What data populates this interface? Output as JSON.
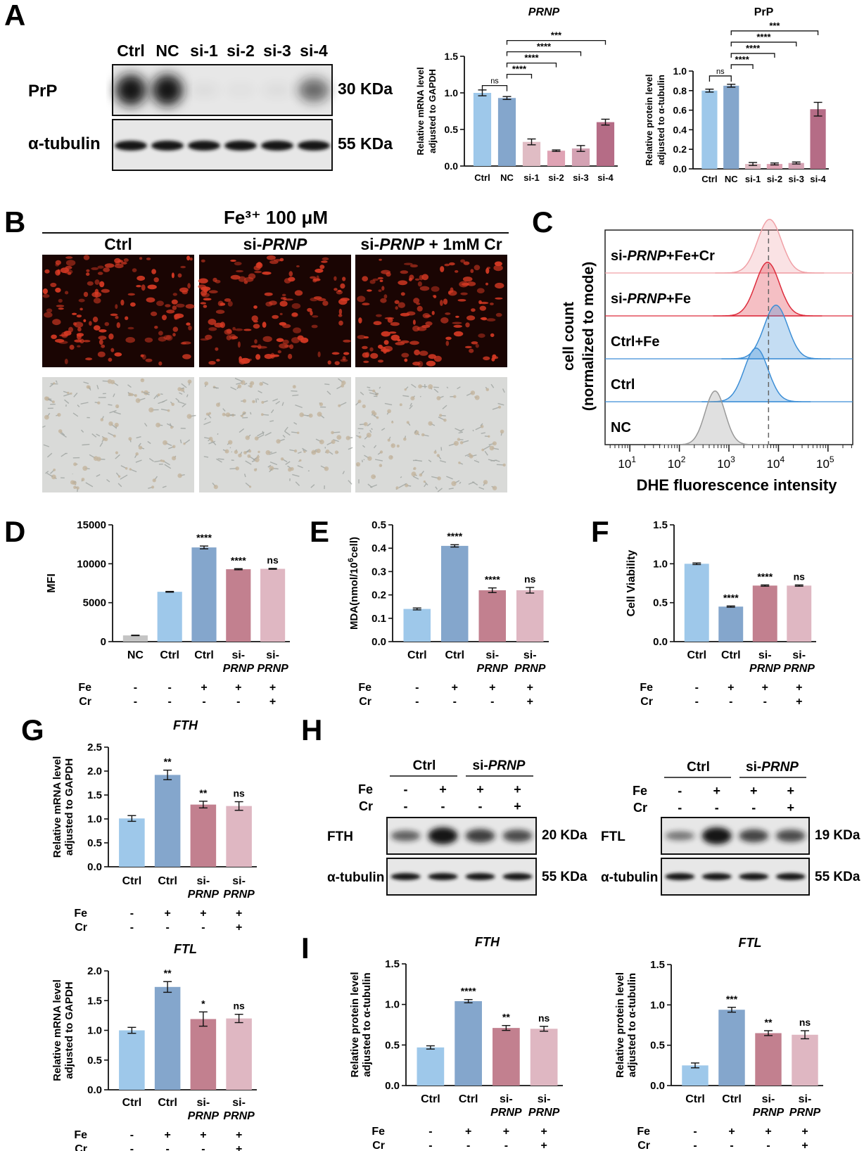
{
  "panels": {
    "A": "A",
    "B": "B",
    "C": "C",
    "D": "D",
    "E": "E",
    "F": "F",
    "G": "G",
    "H": "H",
    "I": "I"
  },
  "colors": {
    "ctrl": "#9ec8ea",
    "nc": "#84a6cc",
    "sigrey": "#c4c4c4",
    "si1": "#e0bcc4",
    "si2": "#dfa3b4",
    "si3": "#d4a2b3",
    "si4": "#b56c86",
    "rose": "#c2808f",
    "pale": "#dfb7c2",
    "blot_bg": "#e7e7e7",
    "band": "#141414",
    "fluor_bg": "#1a0503",
    "fluor_cell": "#d93a24",
    "bright_bg": "#d9dad8"
  },
  "blotA": {
    "lanes": [
      "Ctrl",
      "NC",
      "si-1",
      "si-2",
      "si-3",
      "si-4"
    ],
    "rows": [
      {
        "label": "PrP",
        "kda": "30 KDa"
      },
      {
        "label": "α-tubulin",
        "kda": "55 KDa"
      }
    ],
    "prp_intensity": [
      1.0,
      1.0,
      0.05,
      0.03,
      0.05,
      0.6
    ]
  },
  "panelB": {
    "treatment": "Fe³⁺ 100 μM",
    "groups": [
      {
        "pre": "",
        "ital": "",
        "post": "Ctrl"
      },
      {
        "pre": "si-",
        "ital": "PRNP",
        "post": ""
      },
      {
        "pre": "si-",
        "ital": "PRNP",
        "post": " + 1mM Cr"
      }
    ]
  },
  "panelC": {
    "ylabel1": "cell count",
    "ylabel2": "(normalized to mode)",
    "xlabel": "DHE fluorescence intensity",
    "tracks": [
      {
        "pre": "si-",
        "ital": "PRNP",
        "post": "+Fe+Cr",
        "peak": 3.82,
        "color": "#f0a0a6"
      },
      {
        "pre": "si-",
        "ital": "PRNP",
        "post": "+Fe",
        "peak": 3.78,
        "color": "#dd2c3c"
      },
      {
        "pre": "",
        "ital": "",
        "post": "Ctrl+Fe",
        "peak": 3.95,
        "color": "#3c8ed6"
      },
      {
        "pre": "",
        "ital": "",
        "post": "Ctrl",
        "peak": 3.55,
        "color": "#3c8ed6"
      },
      {
        "pre": "",
        "ital": "",
        "post": "NC",
        "peak": 2.72,
        "color": "#999999"
      }
    ],
    "ticks": [
      "10",
      "1",
      "10",
      "2",
      "10",
      "3",
      "10",
      "4",
      "10",
      "5"
    ]
  },
  "labels": {
    "nc": "NC",
    "ctrl": "Ctrl",
    "si": "si-",
    "prnp": "PRNP",
    "fe": "Fe",
    "cr": "Cr",
    "plus": "+",
    "minus": "-",
    "si1": "si-1",
    "si2": "si-2",
    "si3": "si-3",
    "si4": "si-4",
    "fth": "FTH",
    "ftl": "FTL",
    "mfi": "MFI",
    "mda": "MDA(nmol/10",
    "mda_sup": "6",
    "mda_end": "cell)",
    "viab": "Cell Viability",
    "mrna1": "Relative mRNA level",
    "mrna2": "adjusted to GAPDH",
    "prot1": "Relative protein level",
    "prot2": "adjusted to α-tubulin",
    "tub": "α-tubulin",
    "kda20": "20 KDa",
    "kda19": "19 KDa",
    "kda55": "55 KDa"
  },
  "chart_data": [
    {
      "id": "A-mRNA",
      "type": "bar",
      "title": "PRNP",
      "ylabel": "Relative mRNA level adjusted to GAPDH",
      "categories": [
        "Ctrl",
        "NC",
        "si-1",
        "si-2",
        "si-3",
        "si-4"
      ],
      "values": [
        1.0,
        0.93,
        0.33,
        0.21,
        0.24,
        0.6
      ],
      "errors": [
        0.04,
        0.02,
        0.04,
        0.01,
        0.04,
        0.04
      ],
      "ylim": [
        0,
        1.5
      ],
      "yticks": [
        "0.0",
        "0.5",
        "1.0",
        "1.5"
      ],
      "significance": [
        "ns",
        "****",
        "****",
        "****",
        "***"
      ]
    },
    {
      "id": "A-protein",
      "type": "bar",
      "title": "PrP",
      "ylabel": "Relative protein level adjusted to α-tubulin",
      "categories": [
        "Ctrl",
        "NC",
        "si-1",
        "si-2",
        "si-3",
        "si-4"
      ],
      "values": [
        0.8,
        0.85,
        0.05,
        0.05,
        0.06,
        0.61
      ],
      "errors": [
        0.015,
        0.015,
        0.015,
        0.01,
        0.01,
        0.07
      ],
      "ylim": [
        0,
        1.0
      ],
      "yticks": [
        "0.0",
        "0.2",
        "0.4",
        "0.6",
        "0.8",
        "1.0"
      ],
      "significance": [
        "ns",
        "****",
        "****",
        "****",
        "***"
      ]
    },
    {
      "id": "D",
      "type": "bar",
      "ylabel": "MFI",
      "categories": [
        "NC",
        "Ctrl",
        "Ctrl",
        "si-PRNP",
        "si-PRNP"
      ],
      "values": [
        800,
        6400,
        12100,
        9300,
        9350
      ],
      "errors": [
        30,
        50,
        180,
        70,
        50
      ],
      "ylim": [
        0,
        15000
      ],
      "yticks": [
        "0",
        "5000",
        "10000",
        "15000"
      ],
      "labels": [
        "",
        "",
        "****",
        "****",
        "ns"
      ],
      "fe": [
        "-",
        "-",
        "+",
        "+",
        "+"
      ],
      "cr": [
        "-",
        "-",
        "-",
        "-",
        "+"
      ]
    },
    {
      "id": "E",
      "type": "bar",
      "ylabel": "MDA(nmol/10^6cell)",
      "categories": [
        "Ctrl",
        "Ctrl",
        "si-PRNP",
        "si-PRNP"
      ],
      "values": [
        0.14,
        0.41,
        0.22,
        0.22
      ],
      "errors": [
        0.004,
        0.005,
        0.01,
        0.012
      ],
      "ylim": [
        0,
        0.5
      ],
      "yticks": [
        "0.0",
        "0.1",
        "0.2",
        "0.3",
        "0.4",
        "0.5"
      ],
      "labels": [
        "",
        "****",
        "****",
        "ns"
      ],
      "fe": [
        "-",
        "+",
        "+",
        "+"
      ],
      "cr": [
        "-",
        "-",
        "-",
        "+"
      ]
    },
    {
      "id": "F",
      "type": "bar",
      "ylabel": "Cell Viability",
      "categories": [
        "Ctrl",
        "Ctrl",
        "si-PRNP",
        "si-PRNP"
      ],
      "values": [
        1.0,
        0.45,
        0.72,
        0.72
      ],
      "errors": [
        0.01,
        0.008,
        0.008,
        0.008
      ],
      "ylim": [
        0,
        1.5
      ],
      "yticks": [
        "0.0",
        "0.5",
        "1.0",
        "1.5"
      ],
      "labels": [
        "",
        "****",
        "****",
        "ns"
      ],
      "fe": [
        "-",
        "+",
        "+",
        "+"
      ],
      "cr": [
        "-",
        "-",
        "-",
        "+"
      ]
    },
    {
      "id": "G-FTH",
      "type": "bar",
      "title": "FTH",
      "ylabel": "Relative mRNA level adjusted to GAPDH",
      "categories": [
        "Ctrl",
        "Ctrl",
        "si-PRNP",
        "si-PRNP"
      ],
      "values": [
        1.01,
        1.92,
        1.3,
        1.27
      ],
      "errors": [
        0.06,
        0.1,
        0.07,
        0.09
      ],
      "ylim": [
        0,
        2.5
      ],
      "yticks": [
        "0.0",
        "0.5",
        "1.0",
        "1.5",
        "2.0",
        "2.5"
      ],
      "labels": [
        "",
        "**",
        "**",
        "ns"
      ],
      "fe": [
        "-",
        "+",
        "+",
        "+"
      ],
      "cr": [
        "-",
        "-",
        "-",
        "+"
      ]
    },
    {
      "id": "G-FTL",
      "type": "bar",
      "title": "FTL",
      "ylabel": "Relative mRNA level adjusted to GAPDH",
      "categories": [
        "Ctrl",
        "Ctrl",
        "si-PRNP",
        "si-PRNP"
      ],
      "values": [
        1.0,
        1.73,
        1.19,
        1.2
      ],
      "errors": [
        0.05,
        0.09,
        0.12,
        0.07
      ],
      "ylim": [
        0,
        2.0
      ],
      "yticks": [
        "0.0",
        "0.5",
        "1.0",
        "1.5",
        "2.0"
      ],
      "labels": [
        "",
        "**",
        "*",
        "ns"
      ],
      "fe": [
        "-",
        "+",
        "+",
        "+"
      ],
      "cr": [
        "-",
        "-",
        "-",
        "+"
      ]
    },
    {
      "id": "I-FTH",
      "type": "bar",
      "title": "FTH",
      "ylabel": "Relative protein level adjusted to α-tubulin",
      "categories": [
        "Ctrl",
        "Ctrl",
        "si-PRNP",
        "si-PRNP"
      ],
      "values": [
        0.47,
        1.04,
        0.71,
        0.7
      ],
      "errors": [
        0.02,
        0.02,
        0.03,
        0.03
      ],
      "ylim": [
        0,
        1.5
      ],
      "yticks": [
        "0.0",
        "0.5",
        "1.0",
        "1.5"
      ],
      "labels": [
        "",
        "****",
        "**",
        "ns"
      ],
      "fe": [
        "-",
        "+",
        "+",
        "+"
      ],
      "cr": [
        "-",
        "-",
        "-",
        "+"
      ]
    },
    {
      "id": "I-FTL",
      "type": "bar",
      "title": "FTL",
      "ylabel": "Relative protein level adjusted to α-tubulin",
      "categories": [
        "Ctrl",
        "Ctrl",
        "si-PRNP",
        "si-PRNP"
      ],
      "values": [
        0.25,
        0.94,
        0.65,
        0.63
      ],
      "errors": [
        0.03,
        0.03,
        0.03,
        0.05
      ],
      "ylim": [
        0,
        1.5
      ],
      "yticks": [
        "0.0",
        "0.5",
        "1.0",
        "1.5"
      ],
      "labels": [
        "",
        "***",
        "**",
        "ns"
      ],
      "fe": [
        "-",
        "+",
        "+",
        "+"
      ],
      "cr": [
        "-",
        "-",
        "-",
        "+"
      ]
    }
  ],
  "blotH": [
    {
      "protein": "FTH",
      "kda": "20 KDa",
      "intensity": [
        0.45,
        1.0,
        0.7,
        0.6
      ]
    },
    {
      "protein": "FTL",
      "kda": "19 KDa",
      "intensity": [
        0.3,
        1.0,
        0.65,
        0.6
      ]
    }
  ]
}
